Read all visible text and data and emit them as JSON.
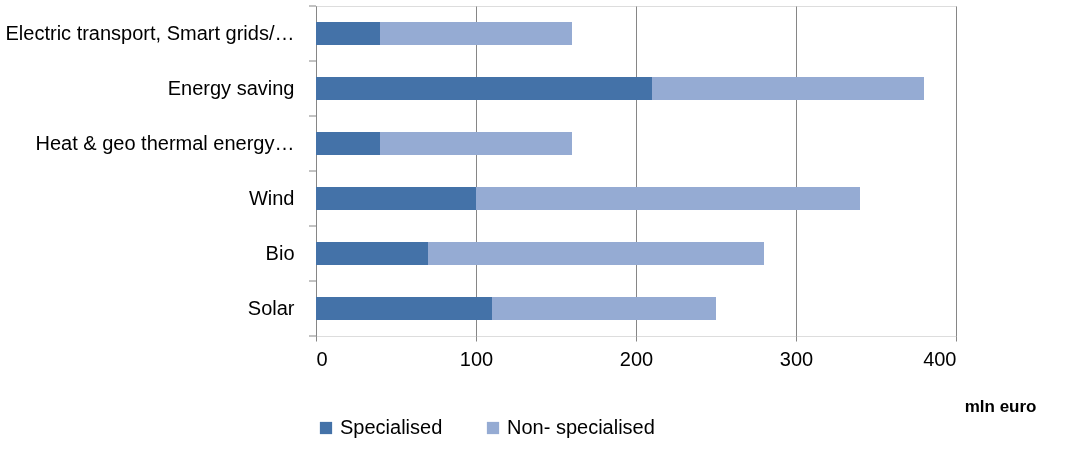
{
  "chart_data": {
    "type": "bar",
    "orientation": "horizontal",
    "stacked": true,
    "categories": [
      "Electric transport, Smart grids/…",
      "Energy saving",
      "Heat & geo thermal energy…",
      "Wind",
      "Bio",
      "Solar"
    ],
    "series": [
      {
        "name": "Specialised",
        "color": "#4472a8",
        "values": [
          40,
          210,
          40,
          100,
          70,
          110
        ]
      },
      {
        "name": "Non- specialised",
        "color": "#95abd3",
        "values": [
          120,
          170,
          120,
          240,
          210,
          140
        ]
      }
    ],
    "xlim": [
      0,
      400
    ],
    "xticks": [
      0,
      100,
      200,
      300,
      400
    ],
    "xlabel": "mln euro",
    "grid": "x",
    "legend": "bottom"
  }
}
